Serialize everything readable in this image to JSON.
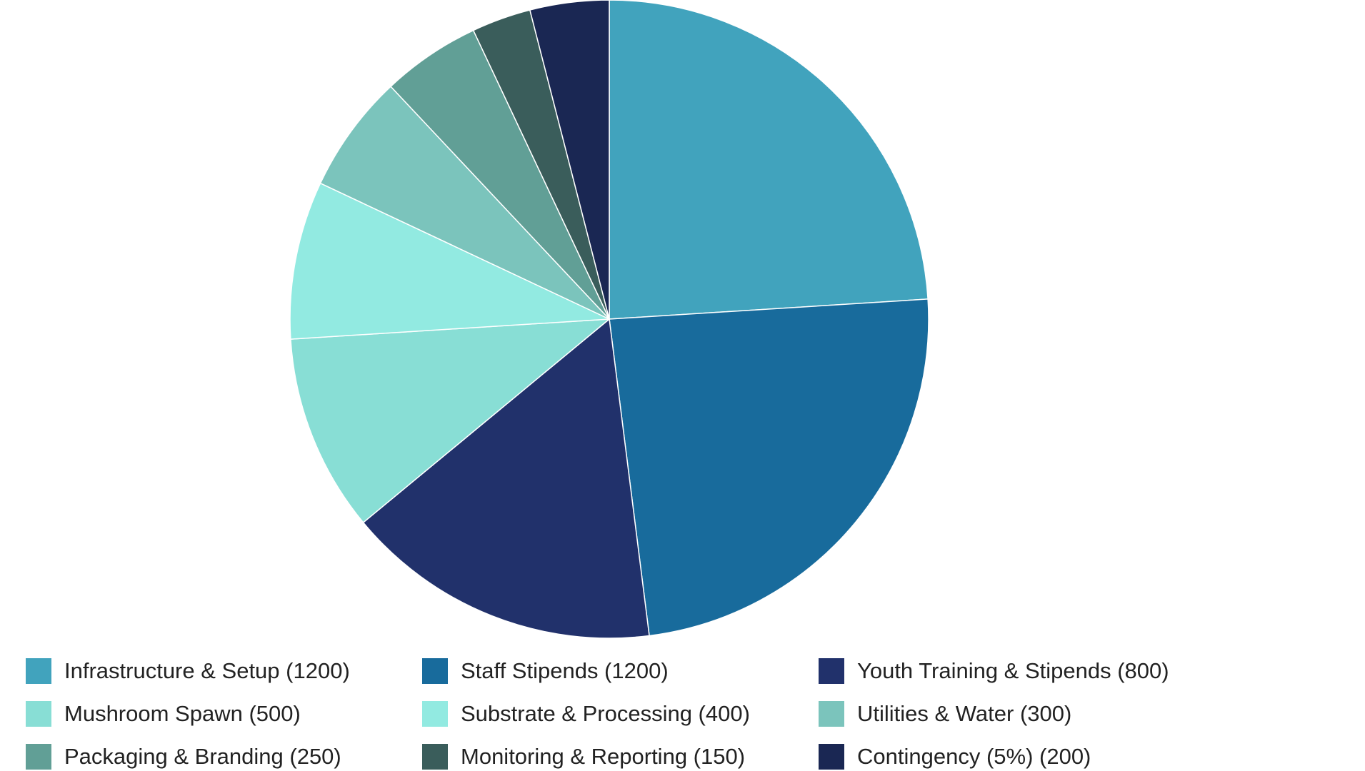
{
  "chart_data": {
    "type": "pie",
    "title": "",
    "start_angle_deg": 0,
    "direction": "clockwise",
    "legend_position": "bottom",
    "slices": [
      {
        "label": "Infrastructure & Setup (1200)",
        "value": 1200,
        "color": "#41A3BD"
      },
      {
        "label": "Staff Stipends (1200)",
        "value": 1200,
        "color": "#186B9C"
      },
      {
        "label": "Youth Training & Stipends (800)",
        "value": 800,
        "color": "#21316B"
      },
      {
        "label": "Mushroom Spawn (500)",
        "value": 500,
        "color": "#88DED5"
      },
      {
        "label": "Substrate & Processing (400)",
        "value": 400,
        "color": "#92EAE1"
      },
      {
        "label": "Utilities & Water (300)",
        "value": 300,
        "color": "#7BC4BC"
      },
      {
        "label": "Packaging & Branding (250)",
        "value": 250,
        "color": "#619F96"
      },
      {
        "label": "Monitoring & Reporting (150)",
        "value": 150,
        "color": "#3A5D5B"
      },
      {
        "label": "Contingency (5%) (200)",
        "value": 200,
        "color": "#1A2753"
      }
    ]
  }
}
